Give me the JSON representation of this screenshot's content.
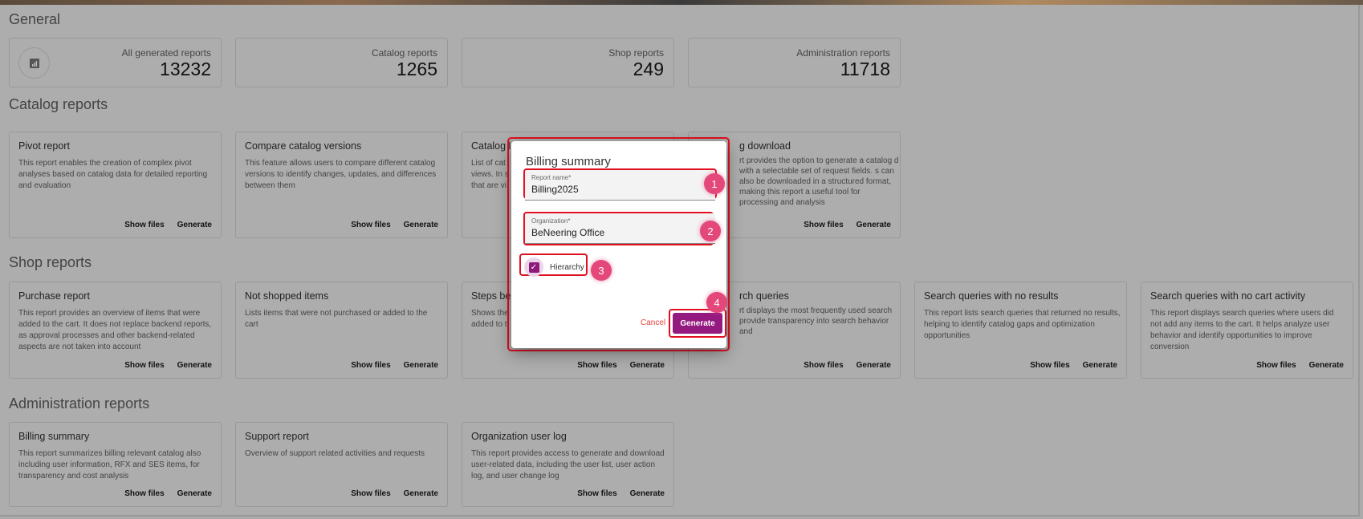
{
  "general": {
    "title": "General",
    "stats": [
      {
        "label": "All generated reports",
        "value": "13232",
        "icon": "chart-icon"
      },
      {
        "label": "Catalog reports",
        "value": "1265"
      },
      {
        "label": "Shop reports",
        "value": "249"
      },
      {
        "label": "Administration reports",
        "value": "11718"
      }
    ]
  },
  "actions": {
    "show_files": "Show files",
    "generate": "Generate"
  },
  "catalog": {
    "title": "Catalog reports",
    "cards": [
      {
        "title": "Pivot report",
        "desc": "This report enables the creation of complex pivot analyses based on catalog data for detailed reporting and evaluation"
      },
      {
        "title": "Compare catalog versions",
        "desc": "This feature allows users to compare different catalog versions to identify changes, updates, and differences between them"
      },
      {
        "title": "Catalog l",
        "desc": "List of cat views. In s that are vi"
      },
      {
        "title": "g download",
        "desc": "rt provides the option to generate a catalog d with a selectable set of request fields. s can also be downloaded in a structured format, making this report a useful tool for processing and analysis"
      }
    ]
  },
  "shop": {
    "title": "Shop reports",
    "cards": [
      {
        "title": "Purchase report",
        "desc": "This report provides an overview of items that were added to the cart. It does not replace backend reports, as approval processes and other backend-related aspects are not taken into account"
      },
      {
        "title": "Not shopped items",
        "desc": "Lists items that were not purchased or added to the cart"
      },
      {
        "title": "Steps be",
        "desc": "Shows the added to t"
      },
      {
        "title": "rch queries",
        "desc": "rt displays the most frequently used search provide transparency into search behavior and"
      },
      {
        "title": "Search queries with no results",
        "desc": "This report lists search queries that returned no results, helping to identify catalog gaps and optimization opportunities"
      },
      {
        "title": "Search queries with no cart activity",
        "desc": "This report displays search queries where users did not add any items to the cart. It helps analyze user behavior and identify opportunities to improve conversion"
      }
    ]
  },
  "admin": {
    "title": "Administration reports",
    "cards": [
      {
        "title": "Billing summary",
        "desc": "This report summarizes billing relevant catalog also including user information, RFX and SES items, for transparency and cost analysis"
      },
      {
        "title": "Support report",
        "desc": "Overview of support related activities and requests"
      },
      {
        "title": "Organization user log",
        "desc": "This report provides access to generate and download user-related data, including the user list, user action log, and user change log"
      }
    ]
  },
  "dialog": {
    "title": "Billing summary",
    "report_name_label": "Report name*",
    "report_name_value": "Billing2025",
    "org_label": "Organization*",
    "org_value": "BeNeering Office",
    "hierarchy_label": "Hierarchy",
    "hierarchy_checked": true,
    "cancel": "Cancel",
    "generate": "Generate",
    "accent": "#951a80"
  },
  "badges": [
    "1",
    "2",
    "3",
    "4"
  ]
}
